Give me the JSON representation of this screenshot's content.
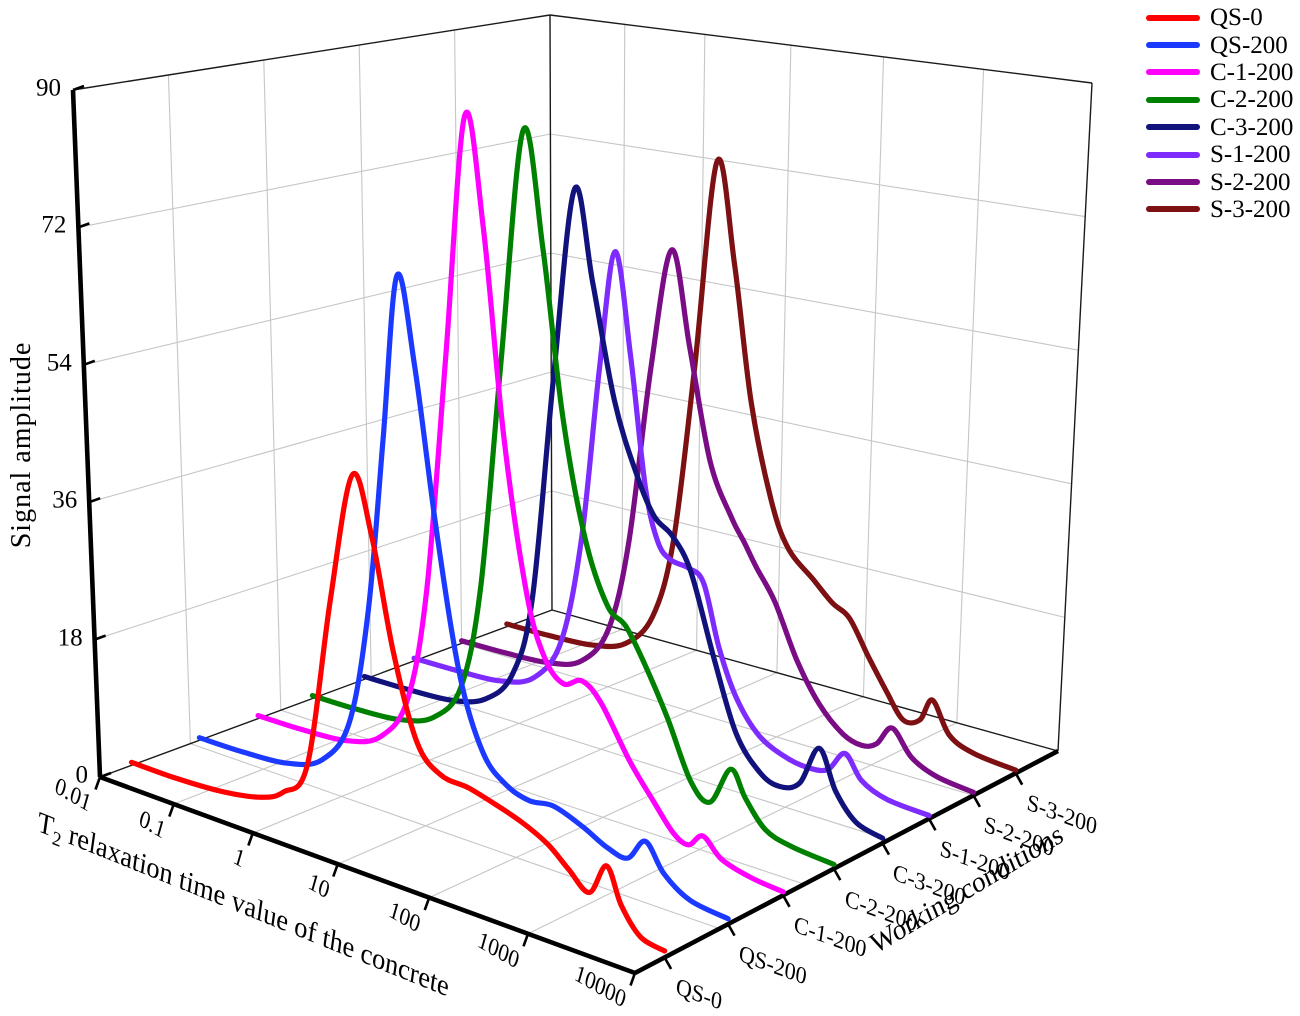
{
  "chart_data": {
    "type": "line",
    "projection": "3d-waterfall",
    "x_axis": {
      "title": "T2 relaxation time value of the concrete",
      "title_t": "T",
      "title_sub": "2",
      "title_rest": " relaxation time value of the concrete",
      "scale": "log",
      "tick_labels": [
        "0.01",
        "0.1",
        "1",
        "10",
        "100",
        "1000",
        "10000"
      ],
      "tick_log10": [
        -2,
        -1,
        0,
        1,
        2,
        3,
        4
      ]
    },
    "y_axis": {
      "title": "Signal amplitude",
      "ticks": [
        0,
        18,
        36,
        54,
        72,
        90
      ],
      "range": [
        0,
        90
      ]
    },
    "z_axis": {
      "title": "Working conditions",
      "tick_labels": [
        "QS-0",
        "QS-200",
        "C-1-200",
        "C-2-200",
        "C-3-200",
        "S-1-200",
        "S-2-200",
        "S-3-200"
      ]
    },
    "grid": {
      "wall_v": [
        0.2,
        0.4,
        0.6,
        0.8
      ],
      "shown": true
    },
    "series": [
      {
        "name": "QS-0",
        "color": "#ff0000",
        "v": 0.07,
        "points": [
          [
            -2,
            0.4
          ],
          [
            -1.4,
            0.4
          ],
          [
            -0.8,
            0.8
          ],
          [
            -0.3,
            1.8
          ],
          [
            0,
            3.5
          ],
          [
            0.3,
            8
          ],
          [
            0.6,
            29
          ],
          [
            0.87,
            45
          ],
          [
            1.08,
            38
          ],
          [
            1.3,
            25
          ],
          [
            1.55,
            15
          ],
          [
            1.8,
            12
          ],
          [
            2.1,
            11.5
          ],
          [
            2.4,
            10.5
          ],
          [
            2.65,
            9.5
          ],
          [
            2.9,
            8
          ],
          [
            3.1,
            6
          ],
          [
            3.3,
            4.2
          ],
          [
            3.46,
            7.8
          ],
          [
            3.6,
            4
          ],
          [
            3.78,
            1.3
          ],
          [
            4,
            0.7
          ]
        ]
      },
      {
        "name": "QS-200",
        "color": "#1c3aff",
        "v": 0.22,
        "points": [
          [
            -2,
            0.35
          ],
          [
            -1.4,
            0.45
          ],
          [
            -0.8,
            1
          ],
          [
            -0.35,
            3
          ],
          [
            0,
            9
          ],
          [
            0.25,
            24
          ],
          [
            0.45,
            46
          ],
          [
            0.63,
            67
          ],
          [
            0.82,
            56
          ],
          [
            1.05,
            36
          ],
          [
            1.3,
            19
          ],
          [
            1.55,
            10.5
          ],
          [
            1.8,
            7.5
          ],
          [
            2.05,
            6.5
          ],
          [
            2.3,
            6.8
          ],
          [
            2.6,
            5.5
          ],
          [
            2.85,
            4
          ],
          [
            3.05,
            3.6
          ],
          [
            3.22,
            6.2
          ],
          [
            3.4,
            3.2
          ],
          [
            3.65,
            1.2
          ],
          [
            4,
            0.6
          ]
        ]
      },
      {
        "name": "C-1-200",
        "color": "#ff00ff",
        "v": 0.35,
        "points": [
          [
            -2,
            0.4
          ],
          [
            -1.4,
            0.5
          ],
          [
            -0.8,
            1
          ],
          [
            -0.35,
            3
          ],
          [
            0,
            9
          ],
          [
            0.25,
            24
          ],
          [
            0.5,
            55
          ],
          [
            0.73,
            86
          ],
          [
            0.93,
            72
          ],
          [
            1.15,
            46
          ],
          [
            1.4,
            27
          ],
          [
            1.6,
            19.5
          ],
          [
            1.8,
            17
          ],
          [
            2,
            18
          ],
          [
            2.2,
            16
          ],
          [
            2.5,
            10
          ],
          [
            2.75,
            6
          ],
          [
            2.95,
            3
          ],
          [
            3.1,
            2.2
          ],
          [
            3.24,
            3.8
          ],
          [
            3.42,
            1.8
          ],
          [
            3.7,
            0.8
          ],
          [
            4,
            0.4
          ]
        ]
      },
      {
        "name": "C-2-200",
        "color": "#008000",
        "v": 0.47,
        "points": [
          [
            -2,
            0.4
          ],
          [
            -1.4,
            0.5
          ],
          [
            -0.8,
            1
          ],
          [
            -0.35,
            2.8
          ],
          [
            0,
            8
          ],
          [
            0.25,
            22
          ],
          [
            0.5,
            52
          ],
          [
            0.76,
            83
          ],
          [
            0.98,
            68
          ],
          [
            1.2,
            47
          ],
          [
            1.45,
            32
          ],
          [
            1.7,
            24
          ],
          [
            1.9,
            22
          ],
          [
            2.1,
            18
          ],
          [
            2.35,
            12
          ],
          [
            2.6,
            5
          ],
          [
            2.8,
            3.2
          ],
          [
            3,
            8
          ],
          [
            3.15,
            5
          ],
          [
            3.35,
            2
          ],
          [
            3.6,
            1
          ],
          [
            4,
            0.5
          ]
        ]
      },
      {
        "name": "C-3-200",
        "color": "#12127c",
        "v": 0.585,
        "points": [
          [
            -2,
            0.4
          ],
          [
            -1.4,
            0.5
          ],
          [
            -0.8,
            0.9
          ],
          [
            -0.35,
            2.5
          ],
          [
            0,
            7
          ],
          [
            0.25,
            18
          ],
          [
            0.5,
            48
          ],
          [
            0.74,
            74
          ],
          [
            0.95,
            62
          ],
          [
            1.2,
            47
          ],
          [
            1.45,
            38
          ],
          [
            1.65,
            33
          ],
          [
            1.85,
            31
          ],
          [
            2.05,
            27
          ],
          [
            2.3,
            17
          ],
          [
            2.55,
            8
          ],
          [
            2.8,
            4
          ],
          [
            3,
            3
          ],
          [
            3.2,
            4.2
          ],
          [
            3.38,
            9.2
          ],
          [
            3.55,
            4.5
          ],
          [
            3.75,
            1.5
          ],
          [
            4,
            0.6
          ]
        ]
      },
      {
        "name": "S-1-200",
        "color": "#7e2bfe",
        "v": 0.695,
        "points": [
          [
            -2,
            0.4
          ],
          [
            -1.4,
            0.5
          ],
          [
            -0.8,
            0.9
          ],
          [
            -0.35,
            2.8
          ],
          [
            0,
            9
          ],
          [
            0.25,
            24
          ],
          [
            0.45,
            47
          ],
          [
            0.63,
            64
          ],
          [
            0.82,
            50
          ],
          [
            1,
            33
          ],
          [
            1.15,
            26
          ],
          [
            1.3,
            24
          ],
          [
            1.5,
            23.5
          ],
          [
            1.67,
            22
          ],
          [
            1.85,
            14
          ],
          [
            2.05,
            8
          ],
          [
            2.3,
            4
          ],
          [
            2.6,
            2.2
          ],
          [
            2.85,
            1.8
          ],
          [
            3.02,
            2.4
          ],
          [
            3.18,
            5
          ],
          [
            3.35,
            2.2
          ],
          [
            3.6,
            0.8
          ],
          [
            4,
            0.4
          ]
        ]
      },
      {
        "name": "S-2-200",
        "color": "#7a0d85",
        "v": 0.8,
        "points": [
          [
            -2,
            0.4
          ],
          [
            -1.4,
            0.5
          ],
          [
            -0.8,
            0.9
          ],
          [
            -0.35,
            2.5
          ],
          [
            0,
            8
          ],
          [
            0.25,
            21
          ],
          [
            0.5,
            46
          ],
          [
            0.73,
            63
          ],
          [
            0.95,
            50
          ],
          [
            1.2,
            35
          ],
          [
            1.45,
            28
          ],
          [
            1.6,
            25
          ],
          [
            1.74,
            22
          ],
          [
            1.95,
            18
          ],
          [
            2.2,
            11
          ],
          [
            2.45,
            6
          ],
          [
            2.7,
            3
          ],
          [
            2.9,
            2.2
          ],
          [
            3.05,
            3
          ],
          [
            3.2,
            5.6
          ],
          [
            3.4,
            2.5
          ],
          [
            3.65,
            1
          ],
          [
            4,
            0.4
          ]
        ]
      },
      {
        "name": "S-3-200",
        "color": "#7c1012",
        "v": 0.9,
        "points": [
          [
            -2,
            0.4
          ],
          [
            -1.4,
            0.5
          ],
          [
            -0.8,
            0.9
          ],
          [
            -0.35,
            2.5
          ],
          [
            0,
            7.5
          ],
          [
            0.25,
            19
          ],
          [
            0.48,
            44
          ],
          [
            0.71,
            74
          ],
          [
            0.93,
            60
          ],
          [
            1.15,
            41
          ],
          [
            1.4,
            28
          ],
          [
            1.6,
            22
          ],
          [
            1.89,
            18.5
          ],
          [
            2.1,
            16
          ],
          [
            2.29,
            14.5
          ],
          [
            2.5,
            10
          ],
          [
            2.7,
            6
          ],
          [
            2.88,
            2.8
          ],
          [
            3.05,
            3.4
          ],
          [
            3.17,
            6.5
          ],
          [
            3.35,
            2.5
          ],
          [
            3.6,
            1
          ],
          [
            4,
            0.4
          ]
        ]
      }
    ]
  },
  "legend": {
    "items": [
      {
        "label": "QS-0",
        "color": "#ff0000"
      },
      {
        "label": "QS-200",
        "color": "#1c3aff"
      },
      {
        "label": "C-1-200",
        "color": "#ff00ff"
      },
      {
        "label": "C-2-200",
        "color": "#008000"
      },
      {
        "label": "C-3-200",
        "color": "#12127c"
      },
      {
        "label": "S-1-200",
        "color": "#7e2bfe"
      },
      {
        "label": "S-2-200",
        "color": "#7a0d85"
      },
      {
        "label": "S-3-200",
        "color": "#7c1012"
      }
    ]
  }
}
